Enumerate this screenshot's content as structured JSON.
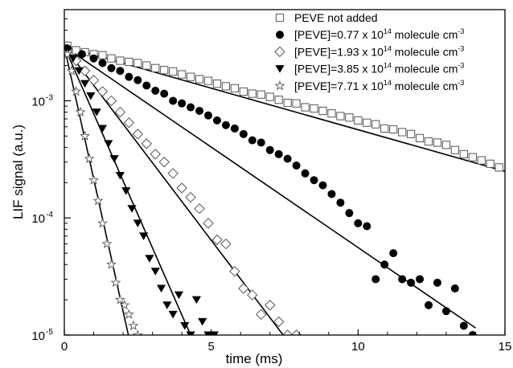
{
  "chart_data": {
    "type": "scatter",
    "title": "",
    "xlabel": "time (ms)",
    "ylabel": "LIF signal (a.u.)",
    "xlim": [
      0,
      15
    ],
    "ylim": [
      1e-05,
      0.006
    ],
    "yscale": "log",
    "x_ticks": [
      0,
      5,
      10,
      15
    ],
    "y_ticks": [
      {
        "value": 0.001,
        "base": "10",
        "exp": "-3"
      },
      {
        "value": 0.0001,
        "base": "10",
        "exp": "-4"
      },
      {
        "value": 1e-05,
        "base": "10",
        "exp": "-5"
      }
    ],
    "grid": false,
    "legend_position": "top-right",
    "series": [
      {
        "name": "PEVE not added",
        "name_parts": {
          "text": "PEVE not added",
          "sup": "",
          "tail": ""
        },
        "marker": "open-square",
        "color": "#555555",
        "x": [
          0.1,
          0.4,
          0.7,
          1.0,
          1.3,
          1.6,
          1.9,
          2.2,
          2.5,
          2.8,
          3.1,
          3.4,
          3.7,
          4.0,
          4.3,
          4.6,
          4.9,
          5.2,
          5.5,
          5.8,
          6.1,
          6.4,
          6.7,
          7.0,
          7.3,
          7.6,
          7.9,
          8.2,
          8.5,
          8.8,
          9.1,
          9.4,
          9.7,
          10.0,
          10.3,
          10.6,
          10.9,
          11.2,
          11.5,
          11.8,
          12.1,
          12.4,
          12.7,
          13.0,
          13.3,
          13.6,
          13.9,
          14.2,
          14.5,
          14.8
        ],
        "y": [
          0.00295,
          0.0027,
          0.0026,
          0.0025,
          0.00245,
          0.0023,
          0.0022,
          0.00215,
          0.0021,
          0.002,
          0.0019,
          0.00183,
          0.00178,
          0.00168,
          0.0016,
          0.00153,
          0.00148,
          0.0014,
          0.00133,
          0.00128,
          0.0012,
          0.00115,
          0.00113,
          0.00108,
          0.00102,
          0.00096,
          0.00095,
          0.00088,
          0.00086,
          0.00082,
          0.00078,
          0.00074,
          0.00072,
          0.00068,
          0.00065,
          0.00063,
          0.00058,
          0.00057,
          0.00054,
          0.00052,
          0.00048,
          0.00045,
          0.00044,
          0.00042,
          0.00038,
          0.00035,
          0.00033,
          0.00031,
          0.00029,
          0.00027
        ],
        "fit": {
          "x": [
            0,
            15
          ],
          "y": [
            0.0029,
            0.00025
          ]
        }
      },
      {
        "name": "[PEVE]=0.77 x 1014 molecule cm-3",
        "name_parts": {
          "text": "[PEVE]=0.77 x 10",
          "sup": "14",
          "tail": " molecule cm",
          "sup2": "-3"
        },
        "marker": "filled-circle",
        "color": "#000000",
        "x": [
          0.1,
          0.6,
          1.0,
          1.3,
          1.6,
          1.9,
          2.2,
          2.5,
          2.8,
          3.1,
          3.4,
          3.7,
          4.0,
          4.3,
          4.6,
          4.9,
          5.2,
          5.5,
          5.8,
          6.1,
          6.4,
          6.7,
          7.0,
          7.3,
          7.6,
          7.9,
          8.2,
          8.5,
          8.8,
          9.1,
          9.4,
          9.7,
          10.0,
          10.3,
          10.6,
          10.9,
          11.2,
          11.5,
          11.8,
          12.1,
          12.4,
          12.7,
          13.0,
          13.3,
          13.6,
          13.9
        ],
        "y": [
          0.0028,
          0.0025,
          0.0023,
          0.0021,
          0.0019,
          0.0018,
          0.0016,
          0.0015,
          0.00135,
          0.00122,
          0.00115,
          0.001,
          0.00095,
          0.00088,
          0.00082,
          0.00075,
          0.00068,
          0.00062,
          0.00058,
          0.00052,
          0.00046,
          0.00044,
          0.00038,
          0.00035,
          0.00032,
          0.00028,
          0.00024,
          0.00021,
          0.00019,
          0.00016,
          0.000135,
          0.00011,
          9e-05,
          8.5e-05,
          3e-05,
          4e-05,
          5e-05,
          3e-05,
          2.8e-05,
          3e-05,
          1.8e-05,
          2.8e-05,
          1.6e-05,
          2.5e-05,
          1.2e-05,
          1e-05
        ],
        "fit": {
          "x": [
            0,
            14
          ],
          "y": [
            0.0029,
            1.15e-05
          ]
        }
      },
      {
        "name": "[PEVE]=1.93 x 1014 molecule cm-3",
        "name_parts": {
          "text": "[PEVE]=1.93 x 10",
          "sup": "14",
          "tail": " molecule cm",
          "sup2": "-3"
        },
        "marker": "open-diamond",
        "color": "#555555",
        "x": [
          0.1,
          0.4,
          0.7,
          1.0,
          1.3,
          1.6,
          1.9,
          2.2,
          2.5,
          2.8,
          3.1,
          3.4,
          3.7,
          4.0,
          4.3,
          4.6,
          4.9,
          5.2,
          5.5,
          5.8,
          6.1,
          6.4,
          6.7,
          7.0,
          7.3,
          7.6,
          7.9
        ],
        "y": [
          0.0026,
          0.0022,
          0.0018,
          0.0015,
          0.0012,
          0.001,
          0.0008,
          0.00065,
          0.00052,
          0.00043,
          0.00035,
          0.0003,
          0.00024,
          0.00018,
          0.00015,
          0.00012,
          9e-05,
          6.5e-05,
          6e-05,
          3.5e-05,
          2.5e-05,
          2.2e-05,
          1.5e-05,
          1.8e-05,
          1.3e-05,
          1e-05,
          1e-05
        ],
        "fit": {
          "x": [
            0,
            7.45
          ],
          "y": [
            0.0029,
            1e-05
          ]
        }
      },
      {
        "name": "[PEVE]=3.85 x 1014 molecule cm-3",
        "name_parts": {
          "text": "[PEVE]=3.85 x 10",
          "sup": "14",
          "tail": " molecule cm",
          "sup2": "-3"
        },
        "marker": "filled-triangle-down",
        "color": "#000000",
        "x": [
          0.1,
          0.3,
          0.5,
          0.7,
          0.9,
          1.1,
          1.3,
          1.5,
          1.7,
          1.9,
          2.1,
          2.3,
          2.5,
          2.7,
          2.9,
          3.1,
          3.3,
          3.5,
          3.7,
          3.9,
          4.1,
          4.3,
          4.5,
          4.7,
          4.9,
          5.1
        ],
        "y": [
          0.0027,
          0.0023,
          0.0018,
          0.0014,
          0.0011,
          0.0008,
          0.00058,
          0.00043,
          0.00032,
          0.00023,
          0.00017,
          0.00012,
          9e-05,
          7e-05,
          4.5e-05,
          3.5e-05,
          2.5e-05,
          1.8e-05,
          1.5e-05,
          2.2e-05,
          1.2e-05,
          1e-05,
          2e-05,
          1.3e-05,
          1e-05,
          1e-05
        ],
        "fit": {
          "x": [
            0,
            4.3
          ],
          "y": [
            0.0029,
            1e-05
          ]
        }
      },
      {
        "name": "[PEVE]=7.71 x 1014 molecule cm-3",
        "name_parts": {
          "text": "[PEVE]=7.71 x 10",
          "sup": "14",
          "tail": " molecule cm",
          "sup2": "-3"
        },
        "marker": "open-star",
        "color": "#555555",
        "x": [
          0.1,
          0.25,
          0.4,
          0.55,
          0.7,
          0.85,
          1.0,
          1.15,
          1.3,
          1.45,
          1.6,
          1.75,
          1.9,
          2.05,
          2.2,
          2.35,
          2.5
        ],
        "y": [
          0.0025,
          0.0018,
          0.0012,
          0.0008,
          0.0005,
          0.00032,
          0.00021,
          0.00014,
          9e-05,
          6e-05,
          4e-05,
          2.8e-05,
          2e-05,
          1.8e-05,
          1.5e-05,
          1.2e-05,
          1e-05
        ],
        "fit": {
          "x": [
            0,
            2.18
          ],
          "y": [
            0.0029,
            1e-05
          ]
        }
      }
    ]
  }
}
